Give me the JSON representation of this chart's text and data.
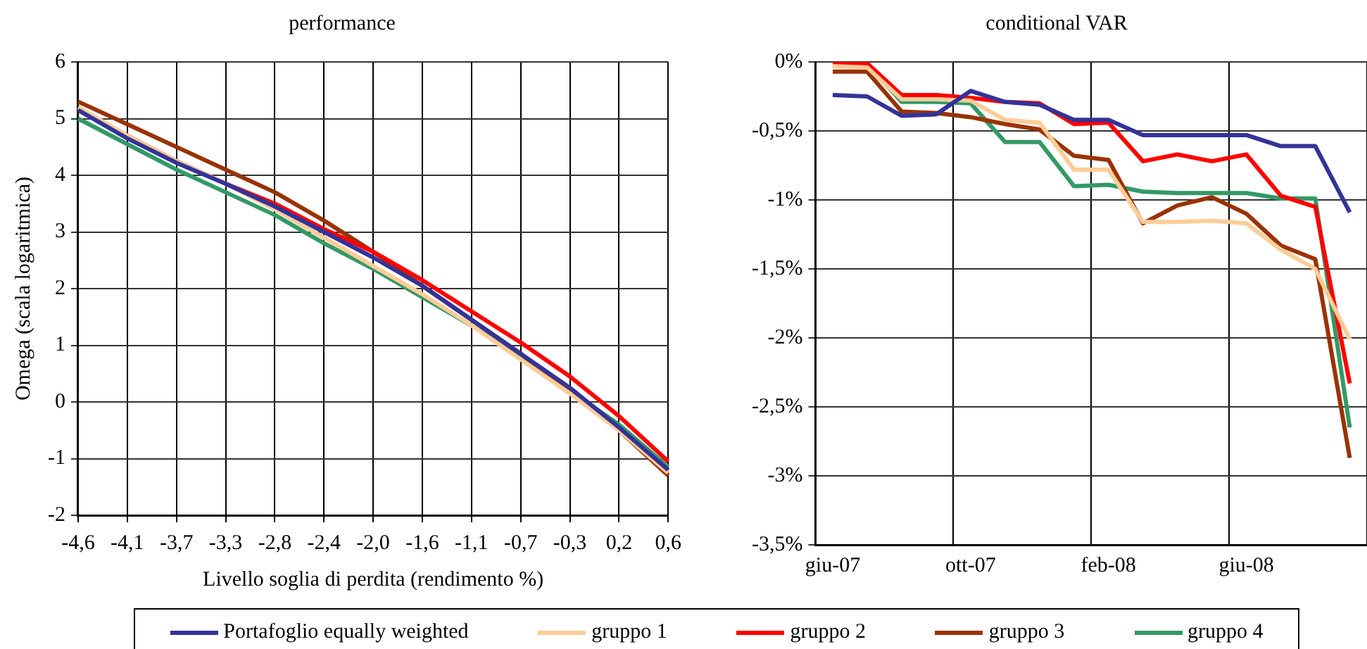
{
  "chart_data": [
    {
      "type": "line",
      "title": "performance",
      "xlabel": "Livello soglia di perdita (rendimento %)",
      "ylabel": "Omega (scala logaritmica)",
      "categories": [
        "-4,6",
        "-4,1",
        "-3,7",
        "-3,3",
        "-2,8",
        "-2,4",
        "-2,0",
        "-1,6",
        "-1,1",
        "-0,7",
        "-0,3",
        "0,2",
        "0,6"
      ],
      "series": [
        {
          "name": "Portafoglio equally weighted",
          "color": "#333399",
          "values": [
            5.15,
            4.65,
            4.22,
            3.85,
            3.45,
            3.0,
            2.55,
            2.05,
            1.45,
            0.85,
            0.25,
            -0.45,
            -1.2
          ]
        },
        {
          "name": "gruppo 1",
          "color": "#ffcc99",
          "values": [
            5.2,
            4.7,
            4.25,
            3.85,
            3.4,
            2.9,
            2.4,
            1.9,
            1.35,
            0.75,
            0.15,
            -0.5,
            -1.25
          ]
        },
        {
          "name": "gruppo 2",
          "color": "#ff0000",
          "values": [
            5.15,
            4.7,
            4.25,
            3.85,
            3.5,
            3.05,
            2.65,
            2.15,
            1.6,
            1.05,
            0.45,
            -0.25,
            -1.05
          ]
        },
        {
          "name": "gruppo 3",
          "color": "#993300",
          "values": [
            5.3,
            4.9,
            4.5,
            4.1,
            3.7,
            3.2,
            2.65,
            2.05,
            1.45,
            0.85,
            0.2,
            -0.5,
            -1.3
          ]
        },
        {
          "name": "gruppo 4",
          "color": "#339966",
          "values": [
            5.0,
            4.55,
            4.1,
            3.7,
            3.3,
            2.8,
            2.35,
            1.85,
            1.35,
            0.8,
            0.2,
            -0.4,
            -1.15
          ]
        }
      ],
      "ylim": [
        -2,
        6
      ],
      "yticks": [
        -2,
        -1,
        0,
        1,
        2,
        3,
        4,
        5,
        6
      ],
      "grid": true,
      "legend": "bottom",
      "marker": "none"
    },
    {
      "type": "line",
      "title": "conditional VAR",
      "categories": [
        "giu-07",
        null,
        null,
        null,
        "ott-07",
        null,
        null,
        null,
        "feb-08",
        null,
        null,
        null,
        "giu-08",
        null,
        null,
        null
      ],
      "series": [
        {
          "color": "#333399",
          "values": [
            -0.24,
            -0.25,
            -0.39,
            -0.38,
            -0.21,
            -0.29,
            -0.31,
            -0.42,
            -0.42,
            -0.53,
            -0.53,
            -0.53,
            -0.53,
            -0.61,
            -0.61,
            -1.09
          ]
        },
        {
          "color": "#ffcc99",
          "values": [
            -0.03,
            -0.04,
            -0.27,
            -0.27,
            -0.28,
            -0.42,
            -0.44,
            -0.78,
            -0.78,
            -1.16,
            -1.16,
            -1.15,
            -1.17,
            -1.36,
            -1.5,
            -2.01
          ]
        },
        {
          "color": "#ff0000",
          "values": [
            -0.01,
            -0.01,
            -0.24,
            -0.24,
            -0.26,
            -0.29,
            -0.3,
            -0.45,
            -0.44,
            -0.72,
            -0.67,
            -0.72,
            -0.67,
            -0.97,
            -1.05,
            -2.33
          ]
        },
        {
          "color": "#993300",
          "values": [
            -0.07,
            -0.07,
            -0.36,
            -0.37,
            -0.4,
            -0.45,
            -0.49,
            -0.68,
            -0.71,
            -1.17,
            -1.04,
            -0.98,
            -1.1,
            -1.33,
            -1.43,
            -2.87
          ]
        },
        {
          "color": "#339966",
          "values": [
            -0.01,
            -0.01,
            -0.29,
            -0.29,
            -0.3,
            -0.58,
            -0.58,
            -0.9,
            -0.89,
            -0.94,
            -0.95,
            -0.95,
            -0.95,
            -0.99,
            -0.99,
            -2.65
          ]
        }
      ],
      "ylim": [
        -3.5,
        0
      ],
      "yticks": [
        {
          "value": -3.5,
          "label": "-3,5%"
        },
        {
          "value": -3,
          "label": "-3%"
        },
        {
          "value": -2.5,
          "label": "-2,5%"
        },
        {
          "value": -2,
          "label": "-2%"
        },
        {
          "value": -1.5,
          "label": "-1,5%"
        },
        {
          "value": -1,
          "label": "-1%"
        },
        {
          "value": -0.5,
          "label": "-0,5%"
        },
        {
          "value": 0,
          "label": "0%"
        }
      ],
      "grid": true,
      "marker": "none"
    }
  ]
}
